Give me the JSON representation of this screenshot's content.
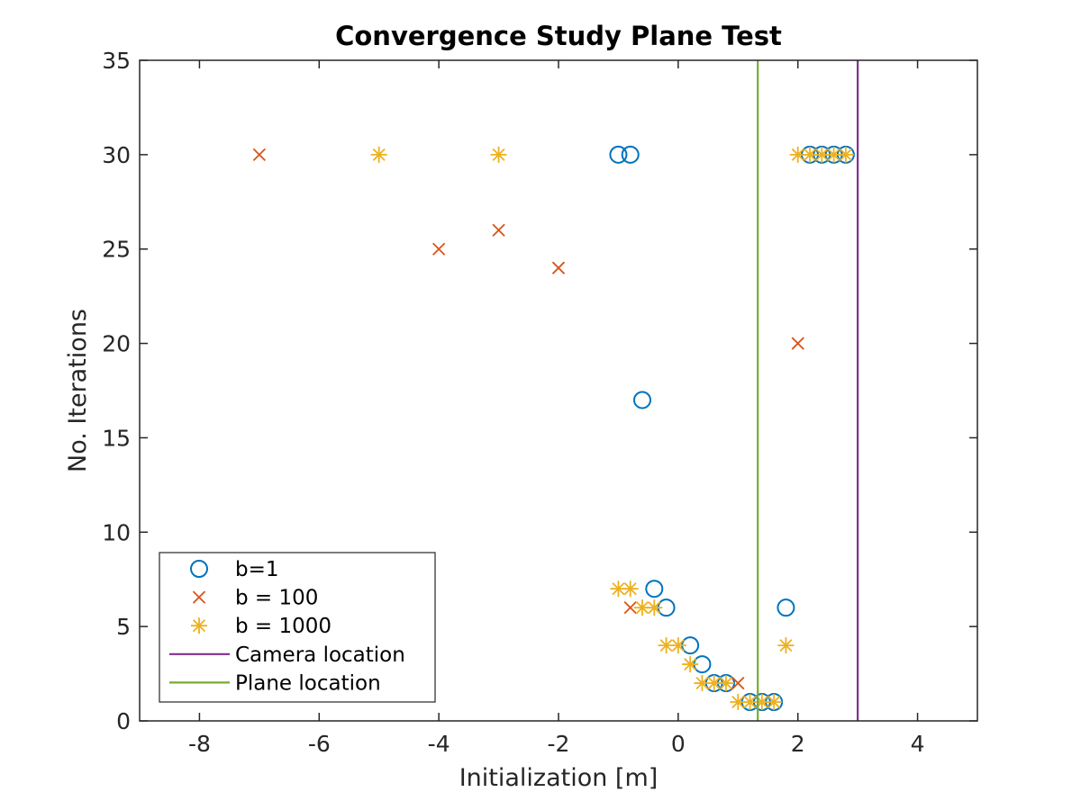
{
  "chart_data": {
    "type": "scatter",
    "title": "Convergence Study Plane Test",
    "xlabel": "Initialization [m]",
    "ylabel": "No. Iterations",
    "xlim": [
      -9,
      5
    ],
    "ylim": [
      0,
      35
    ],
    "xticks": [
      -8,
      -6,
      -4,
      -2,
      0,
      2,
      4
    ],
    "yticks": [
      0,
      5,
      10,
      15,
      20,
      25,
      30,
      35
    ],
    "grid": false,
    "legend_position": "bottom-left",
    "series": [
      {
        "name": "b=1",
        "marker": "circle",
        "color": "#0072BD",
        "points": [
          [
            -1.0,
            30
          ],
          [
            -0.8,
            30
          ],
          [
            -0.6,
            17
          ],
          [
            -0.4,
            7
          ],
          [
            -0.2,
            6
          ],
          [
            0.2,
            4
          ],
          [
            0.4,
            3
          ],
          [
            0.6,
            2
          ],
          [
            0.8,
            2
          ],
          [
            1.2,
            1
          ],
          [
            1.4,
            1
          ],
          [
            1.6,
            1
          ],
          [
            1.8,
            6
          ],
          [
            2.2,
            30
          ],
          [
            2.4,
            30
          ],
          [
            2.6,
            30
          ],
          [
            2.8,
            30
          ]
        ]
      },
      {
        "name": "b = 100",
        "marker": "x",
        "color": "#D95319",
        "points": [
          [
            -7,
            30
          ],
          [
            -4,
            25
          ],
          [
            -3,
            26
          ],
          [
            -2,
            24
          ],
          [
            -0.8,
            6
          ],
          [
            1.0,
            2
          ],
          [
            2.0,
            20
          ]
        ]
      },
      {
        "name": "b = 1000",
        "marker": "asterisk",
        "color": "#EDB120",
        "points": [
          [
            -5,
            30
          ],
          [
            -3,
            30
          ],
          [
            -1.0,
            7
          ],
          [
            -0.8,
            7
          ],
          [
            -0.6,
            6
          ],
          [
            -0.4,
            6
          ],
          [
            -0.2,
            4
          ],
          [
            0.0,
            4
          ],
          [
            0.2,
            3
          ],
          [
            0.4,
            2
          ],
          [
            0.6,
            2
          ],
          [
            0.8,
            2
          ],
          [
            1.0,
            1
          ],
          [
            1.2,
            1
          ],
          [
            1.4,
            1
          ],
          [
            1.6,
            1
          ],
          [
            1.8,
            4
          ],
          [
            2.0,
            30
          ],
          [
            2.2,
            30
          ],
          [
            2.4,
            30
          ],
          [
            2.6,
            30
          ],
          [
            2.8,
            30
          ]
        ]
      },
      {
        "name": "Camera location",
        "marker": "vline",
        "color": "#7E2F8E",
        "x": 3.0
      },
      {
        "name": "Plane location",
        "marker": "vline",
        "color": "#77AC30",
        "x": 1.33
      }
    ]
  }
}
